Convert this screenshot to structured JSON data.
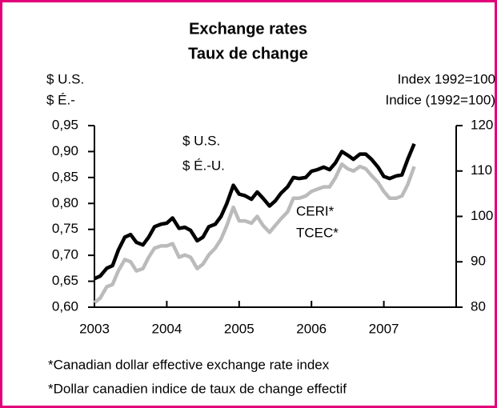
{
  "chart_data": {
    "type": "line",
    "title": "Exchange rates",
    "subtitle": "Taux de change",
    "y_label": [
      "$ U.S.",
      "$ É.-"
    ],
    "y2_label": [
      "Index 1992=100",
      "Indice (1992=100)"
    ],
    "annotations": [
      {
        "text": [
          "$ U.S.",
          "$ É.-U."
        ],
        "series": 0
      },
      {
        "text": [
          "CERI*",
          "TCEC*"
        ],
        "series": 1
      }
    ],
    "footnotes": [
      "*Canadian dollar effective exchange rate index",
      "*Dollar canadien indice de taux de change effectif"
    ],
    "x": [
      2003,
      2003.08,
      2003.17,
      2003.25,
      2003.33,
      2003.42,
      2003.5,
      2003.58,
      2003.67,
      2003.75,
      2003.83,
      2003.92,
      2004,
      2004.08,
      2004.17,
      2004.25,
      2004.33,
      2004.42,
      2004.5,
      2004.58,
      2004.67,
      2004.75,
      2004.83,
      2004.92,
      2005,
      2005.08,
      2005.17,
      2005.25,
      2005.33,
      2005.42,
      2005.5,
      2005.58,
      2005.67,
      2005.75,
      2005.83,
      2005.92,
      2006,
      2006.08,
      2006.17,
      2006.25,
      2006.33,
      2006.42,
      2006.5,
      2006.58,
      2006.67,
      2006.75,
      2006.83,
      2006.92,
      2007,
      2007.08,
      2007.17,
      2007.25,
      2007.33,
      2007.42
    ],
    "series": [
      {
        "name": "$ U.S.",
        "color": "#000000",
        "values": [
          0.655,
          0.66,
          0.675,
          0.68,
          0.71,
          0.735,
          0.74,
          0.725,
          0.72,
          0.735,
          0.755,
          0.76,
          0.762,
          0.772,
          0.752,
          0.754,
          0.748,
          0.728,
          0.735,
          0.755,
          0.76,
          0.775,
          0.8,
          0.835,
          0.818,
          0.815,
          0.808,
          0.822,
          0.81,
          0.795,
          0.805,
          0.82,
          0.832,
          0.85,
          0.848,
          0.85,
          0.862,
          0.865,
          0.87,
          0.865,
          0.878,
          0.9,
          0.893,
          0.885,
          0.895,
          0.895,
          0.885,
          0.87,
          0.852,
          0.848,
          0.853,
          0.855,
          0.885,
          0.915
        ]
      },
      {
        "name": "CERI*",
        "color": "#bbbbbb",
        "axis": "y2",
        "values": [
          81,
          82,
          84.5,
          85,
          88,
          90.5,
          90,
          88,
          88.5,
          91,
          93,
          93.5,
          93.5,
          94,
          91,
          91.5,
          91,
          88.5,
          89.5,
          91.5,
          93,
          95,
          98,
          102,
          99,
          99,
          98.5,
          100,
          98,
          96.5,
          98,
          99.5,
          101,
          104,
          104,
          104.5,
          105.5,
          106,
          106.5,
          106.5,
          108.5,
          111.5,
          110.5,
          110,
          111,
          110.5,
          109,
          107.5,
          105.5,
          104,
          104,
          104.5,
          107,
          111
        ]
      }
    ],
    "xlim": [
      2003,
      2008
    ],
    "xticks": [
      2003,
      2004,
      2005,
      2006,
      2007
    ],
    "ylim": [
      0.6,
      0.95
    ],
    "yticks": [
      {
        "value": 0.6,
        "label": "0,60"
      },
      {
        "value": 0.65,
        "label": "0,65"
      },
      {
        "value": 0.7,
        "label": "0,70"
      },
      {
        "value": 0.75,
        "label": "0,75"
      },
      {
        "value": 0.8,
        "label": "0,80"
      },
      {
        "value": 0.85,
        "label": "0,85"
      },
      {
        "value": 0.9,
        "label": "0,90"
      },
      {
        "value": 0.95,
        "label": "0,95"
      }
    ],
    "y2lim": [
      80,
      120
    ],
    "y2ticks": [
      80,
      90,
      100,
      110,
      120
    ]
  }
}
